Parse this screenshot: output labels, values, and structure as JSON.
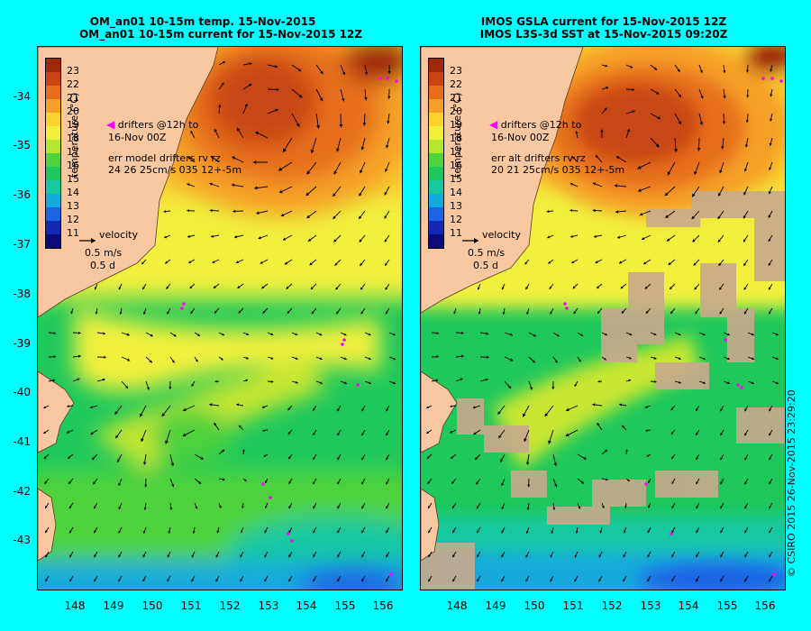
{
  "left_title_1": "OM_an01 10-15m temp. 15-Nov-2015",
  "left_title_2": "OM_an01 10-15m current for 15-Nov-2015 12Z",
  "right_title_1": "IMOS GSLA current for 15-Nov-2015 12Z",
  "right_title_2": "IMOS L3S-3d SST at 15-Nov-2015 09:20Z",
  "y_ticks": [
    "-34",
    "-35",
    "-36",
    "-37",
    "-38",
    "-39",
    "-40",
    "-41",
    "-42",
    "-43"
  ],
  "x_ticks": [
    "148",
    "149",
    "150",
    "151",
    "152",
    "153",
    "154",
    "155",
    "156"
  ],
  "colorbar": {
    "label": "temperature (°C)",
    "ticks": [
      "23",
      "22",
      "21",
      "20",
      "19",
      "18",
      "17",
      "16",
      "15",
      "14",
      "13",
      "12",
      "11"
    ],
    "colors": [
      "#a0280a",
      "#c84614",
      "#e66e1e",
      "#f5a028",
      "#fad232",
      "#f0f03c",
      "#b4e632",
      "#50d23c",
      "#1ec85a",
      "#14c8a0",
      "#14aadc",
      "#1e64e6",
      "#1428b4",
      "#0a0a78"
    ]
  },
  "left_annot": {
    "line1": "drifters @12h to",
    "line2": "16-Nov 00Z",
    "line3": "err model drifters rv rz",
    "line4": "24 26 25cm/s 035 12+-5m"
  },
  "right_annot": {
    "line1": "drifters @12h to",
    "line2": "16-Nov 00Z",
    "line3": "err alt drifters rv rz",
    "line4": "20 21 25cm/s 035 12+-5m"
  },
  "velocity_key": {
    "label": "velocity",
    "speed": "0.5 m/s",
    "duration": "0.5 d"
  },
  "credit": "© CSIRO 2015   26-Nov-2015 23:29:20",
  "colors": {
    "background": "#00ffff",
    "land": "#fac8a0",
    "drifter": "#ff00ff",
    "missing": "#c8aa8c"
  }
}
